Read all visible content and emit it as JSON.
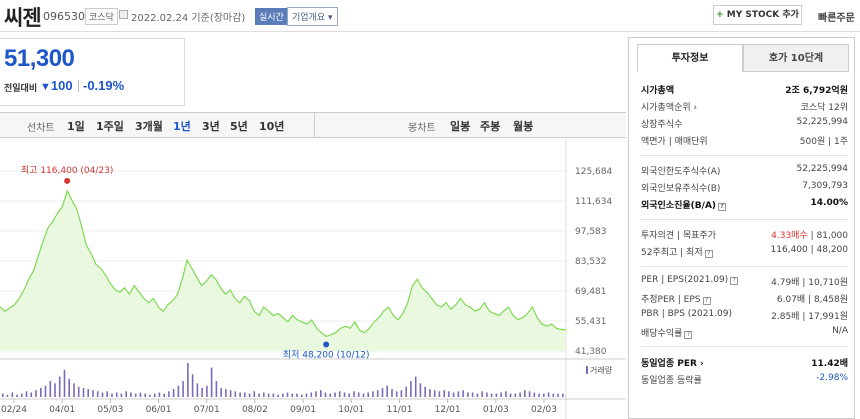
{
  "header": {
    "name": "씨젠",
    "code": "096530",
    "market": "코스닥",
    "base_date": "2022.02.24  기준(장마감)",
    "realtime": "실시간",
    "company_info": "기업개요 ▾",
    "mystock": "MY STOCK 추가",
    "quick": "빠른주문"
  },
  "quote": {
    "price": "51,300",
    "prev_label": "전일대비",
    "change_arrow": "▼",
    "change": "100",
    "change_pct": "-0.19%"
  },
  "period_tabs": {
    "line_label": "선차트",
    "items": [
      "1일",
      "1주일",
      "3개월",
      "1년",
      "3년",
      "5년",
      "10년"
    ],
    "active": "1년",
    "candle_label": "봉차트",
    "candle_items": [
      "일봉",
      "주봉",
      "월봉"
    ]
  },
  "chart_data": {
    "type": "area",
    "x_labels": [
      "02/24",
      "04/01",
      "05/03",
      "06/01",
      "07/01",
      "08/02",
      "09/01",
      "10/01",
      "11/01",
      "12/01",
      "01/03",
      "02/03"
    ],
    "y_ticks": [
      "125,684",
      "111,634",
      "97,583",
      "83,532",
      "69,481",
      "55,431",
      "41,380"
    ],
    "ylim": [
      41380,
      125684
    ],
    "values": [
      62000,
      60000,
      61500,
      63000,
      66000,
      70000,
      75000,
      79000,
      86000,
      93000,
      99000,
      102000,
      106000,
      109000,
      116400,
      112000,
      108000,
      100000,
      91000,
      87000,
      82000,
      80000,
      77000,
      73000,
      70000,
      69000,
      71000,
      68000,
      72000,
      69000,
      66000,
      64000,
      66000,
      62000,
      60000,
      63000,
      65000,
      68000,
      75000,
      84000,
      80000,
      76000,
      72000,
      74000,
      77000,
      75000,
      71000,
      68000,
      70000,
      66000,
      64000,
      67000,
      65000,
      60000,
      58000,
      62000,
      60000,
      58000,
      59000,
      57000,
      55000,
      58000,
      56000,
      55000,
      54000,
      56000,
      52000,
      50000,
      48200,
      49000,
      50000,
      52000,
      53000,
      52000,
      55000,
      51000,
      50000,
      52000,
      55000,
      57000,
      60000,
      62000,
      58000,
      56000,
      59000,
      64000,
      72000,
      75000,
      71000,
      69000,
      66000,
      63000,
      62000,
      64000,
      61000,
      63000,
      66000,
      63000,
      62000,
      60000,
      61000,
      64000,
      60000,
      59000,
      58000,
      60000,
      62000,
      58000,
      56000,
      57000,
      59000,
      62000,
      57000,
      54000,
      53000,
      54000,
      52000,
      51500,
      51300
    ],
    "max_label": "최고 116,400 (04/23)",
    "min_label": "최저 48,200 (10/12)",
    "volume_label": "거래량",
    "volume": [
      3,
      2,
      4,
      2,
      3,
      5,
      4,
      6,
      8,
      10,
      14,
      12,
      18,
      24,
      16,
      12,
      9,
      8,
      7,
      6,
      5,
      4,
      5,
      3,
      4,
      3,
      5,
      4,
      3,
      4,
      3,
      2,
      3,
      4,
      3,
      5,
      7,
      10,
      14,
      30,
      20,
      12,
      8,
      10,
      26,
      14,
      8,
      7,
      6,
      5,
      4,
      4,
      3,
      5,
      3,
      4,
      3,
      3,
      2,
      3,
      4,
      3,
      3,
      2,
      3,
      4,
      5,
      6,
      4,
      3,
      4,
      5,
      4,
      3,
      5,
      4,
      3,
      4,
      5,
      6,
      8,
      10,
      7,
      5,
      6,
      9,
      14,
      18,
      12,
      9,
      7,
      6,
      5,
      6,
      5,
      4,
      5,
      6,
      4,
      4,
      3,
      5,
      4,
      3,
      3,
      4,
      5,
      3,
      3,
      4,
      6,
      5,
      4,
      3,
      3,
      4,
      3,
      3,
      3
    ]
  },
  "panel": {
    "tab_invest": "투자정보",
    "tab_hoga": "호가 10단계",
    "rows": [
      {
        "k": "시가총액",
        "v": "2조 6,792억원",
        "bold": true
      },
      {
        "k": "시가총액순위 ›",
        "v": "코스닥 12위"
      },
      {
        "k": "상장주식수",
        "v": "52,225,994"
      },
      {
        "k": "액면가 | 매매단위",
        "v": "500원 | 1주"
      },
      {
        "k": "외국인한도주식수(A)",
        "v": "52,225,994"
      },
      {
        "k": "외국인보유주식수(B)",
        "v": "7,309,793"
      },
      {
        "k": "외국인소진율(B/A)",
        "v": "14.00%",
        "bold": true
      },
      {
        "k": "투자의견 | 목표주가",
        "v_red": "4.33매수",
        "v": "| 81,000"
      },
      {
        "k": "52주최고 | 최저",
        "v": "116,400 | 48,200"
      },
      {
        "k": "PER | EPS(2021.09)",
        "v": "4.79배 | 10,710원"
      },
      {
        "k": "추정PER | EPS",
        "v": "6.07배 | 8,458원"
      },
      {
        "k": "PBR | BPS (2021.09)",
        "v": "2.85배 | 17,991원"
      },
      {
        "k": "배당수익률",
        "v": "N/A"
      },
      {
        "k": "동일업종 PER ›",
        "v": "11.42배",
        "bold": true
      },
      {
        "k": "동일업종 등락률",
        "v": "-2.98%",
        "blue": true
      }
    ]
  },
  "colors": {
    "down": "#1d57c9",
    "up": "#d33333",
    "area_line": "#7ed957",
    "area_fill": "#e9f8de"
  }
}
